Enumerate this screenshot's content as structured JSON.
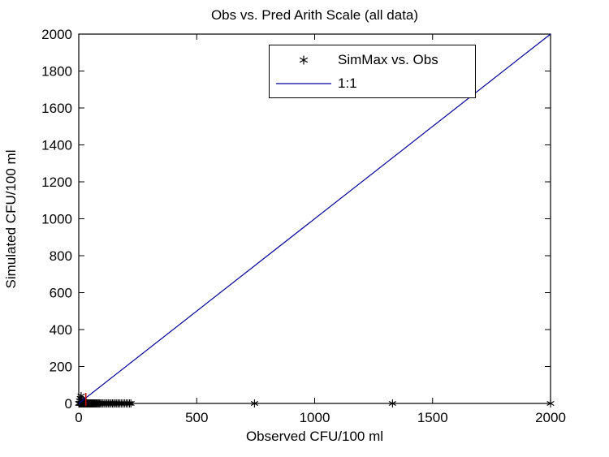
{
  "title": "Obs vs. Pred Arith Scale (all data)",
  "chart_data": {
    "type": "scatter",
    "title": "Obs vs. Pred Arith Scale (all data)",
    "xlabel": "Observed CFU/100 ml",
    "ylabel": "Simulated CFU/100 ml",
    "xlim": [
      0,
      2000
    ],
    "ylim": [
      0,
      2000
    ],
    "xticks": [
      0,
      500,
      1000,
      1500,
      2000
    ],
    "yticks": [
      0,
      200,
      400,
      600,
      800,
      1000,
      1200,
      1400,
      1600,
      1800,
      2000
    ],
    "grid": false,
    "background_color": "#ffffff",
    "frame_color": "#000000",
    "legend": {
      "position": "upper center",
      "entries": [
        {
          "label": "SimMax vs. Obs",
          "marker": "asterisk",
          "color": "#000000"
        },
        {
          "label": "1:1",
          "marker": "line",
          "color": "#000099"
        }
      ]
    },
    "series": [
      {
        "name": "SimMax vs. Obs",
        "type": "scatter",
        "marker": "asterisk",
        "color": "#000000",
        "points": [
          [
            0,
            0
          ],
          [
            2,
            0
          ],
          [
            4,
            0
          ],
          [
            6,
            0
          ],
          [
            8,
            0
          ],
          [
            10,
            0
          ],
          [
            12,
            0
          ],
          [
            14,
            0
          ],
          [
            16,
            0
          ],
          [
            18,
            0
          ],
          [
            20,
            0
          ],
          [
            22,
            0
          ],
          [
            24,
            0
          ],
          [
            26,
            0
          ],
          [
            28,
            0
          ],
          [
            30,
            0
          ],
          [
            32,
            0
          ],
          [
            34,
            0
          ],
          [
            36,
            0
          ],
          [
            38,
            0
          ],
          [
            40,
            0
          ],
          [
            42,
            0
          ],
          [
            44,
            0
          ],
          [
            46,
            0
          ],
          [
            48,
            0
          ],
          [
            50,
            0
          ],
          [
            52,
            0
          ],
          [
            55,
            0
          ],
          [
            58,
            0
          ],
          [
            61,
            0
          ],
          [
            64,
            0
          ],
          [
            67,
            0
          ],
          [
            70,
            0
          ],
          [
            74,
            0
          ],
          [
            78,
            0
          ],
          [
            82,
            0
          ],
          [
            86,
            0
          ],
          [
            90,
            0
          ],
          [
            4,
            15
          ],
          [
            7,
            28
          ],
          [
            10,
            40
          ],
          [
            14,
            22
          ],
          [
            20,
            12
          ],
          [
            28,
            8
          ],
          [
            95,
            0
          ],
          [
            101,
            0
          ],
          [
            107,
            0
          ],
          [
            113,
            0
          ],
          [
            119,
            0
          ],
          [
            125,
            0
          ],
          [
            131,
            0
          ],
          [
            137,
            0
          ],
          [
            143,
            0
          ],
          [
            149,
            0
          ],
          [
            155,
            0
          ],
          [
            161,
            0
          ],
          [
            167,
            0
          ],
          [
            173,
            0
          ],
          [
            180,
            0
          ],
          [
            187,
            0
          ],
          [
            194,
            0
          ],
          [
            201,
            0
          ],
          [
            208,
            0
          ],
          [
            215,
            0
          ],
          [
            221,
            0
          ],
          [
            745,
            0
          ],
          [
            1330,
            0
          ],
          [
            2000,
            0
          ]
        ]
      },
      {
        "name": "1:1",
        "type": "line",
        "color": "#000099",
        "x": [
          0,
          2000
        ],
        "y": [
          0,
          2000
        ]
      }
    ],
    "annotations": [
      {
        "type": "red-tick",
        "x": 30,
        "y_from": -15,
        "y_to": 57,
        "color": "#CC0000"
      }
    ]
  }
}
